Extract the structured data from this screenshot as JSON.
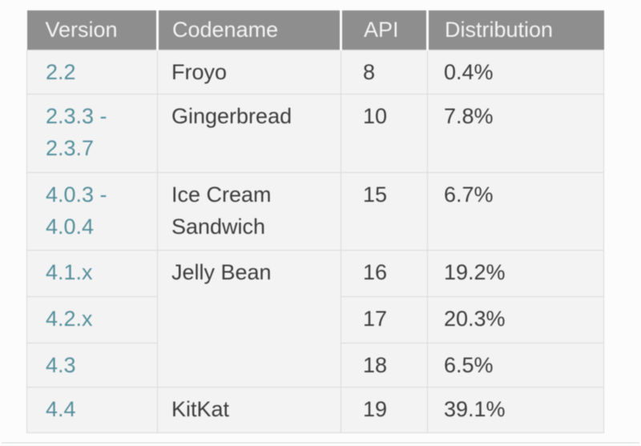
{
  "colors": {
    "page_background": "#fcfcfc",
    "header_background": "#8e8e8e",
    "header_text": "#f3f3f3",
    "cell_background": "#f3f3f3",
    "cell_border": "#d9d9d9",
    "version_link": "#57909c",
    "body_text": "#3d3d3d"
  },
  "table": {
    "columns": [
      {
        "key": "version",
        "label": "Version"
      },
      {
        "key": "codename",
        "label": "Codename"
      },
      {
        "key": "api",
        "label": "API"
      },
      {
        "key": "distribution",
        "label": "Distribution"
      }
    ],
    "rows": [
      {
        "version": "2.2",
        "codename": "Froyo",
        "codename_rowspan": 1,
        "api": "8",
        "distribution": "0.4%"
      },
      {
        "version": "2.3.3 - 2.3.7",
        "codename": "Gingerbread",
        "codename_rowspan": 1,
        "api": "10",
        "distribution": "7.8%"
      },
      {
        "version": "4.0.3 - 4.0.4",
        "codename": "Ice Cream Sandwich",
        "codename_rowspan": 1,
        "api": "15",
        "distribution": "6.7%"
      },
      {
        "version": "4.1.x",
        "codename": "Jelly Bean",
        "codename_rowspan": 3,
        "api": "16",
        "distribution": "19.2%"
      },
      {
        "version": "4.2.x",
        "codename": "",
        "codename_rowspan": 0,
        "api": "17",
        "distribution": "20.3%"
      },
      {
        "version": "4.3",
        "codename": "",
        "codename_rowspan": 0,
        "api": "18",
        "distribution": "6.5%"
      },
      {
        "version": "4.4",
        "codename": "KitKat",
        "codename_rowspan": 1,
        "api": "19",
        "distribution": "39.1%"
      }
    ]
  },
  "chart_data": {
    "type": "table",
    "columns": [
      "Version",
      "Codename",
      "API",
      "Distribution"
    ],
    "rows": [
      [
        "2.2",
        "Froyo",
        "8",
        "0.4%"
      ],
      [
        "2.3.3 - 2.3.7",
        "Gingerbread",
        "10",
        "7.8%"
      ],
      [
        "4.0.3 - 4.0.4",
        "Ice Cream Sandwich",
        "15",
        "6.7%"
      ],
      [
        "4.1.x",
        "Jelly Bean",
        "16",
        "19.2%"
      ],
      [
        "4.2.x",
        "",
        "17",
        "20.3%"
      ],
      [
        "4.3",
        "",
        "18",
        "6.5%"
      ],
      [
        "4.4",
        "KitKat",
        "19",
        "39.1%"
      ]
    ],
    "merged_cells": [
      {
        "column": "Codename",
        "value": "Jelly Bean",
        "spans_api_levels": [
          "16",
          "17",
          "18"
        ]
      }
    ],
    "distribution_values_percent": [
      0.4,
      7.8,
      6.7,
      19.2,
      20.3,
      6.5,
      39.1
    ]
  }
}
